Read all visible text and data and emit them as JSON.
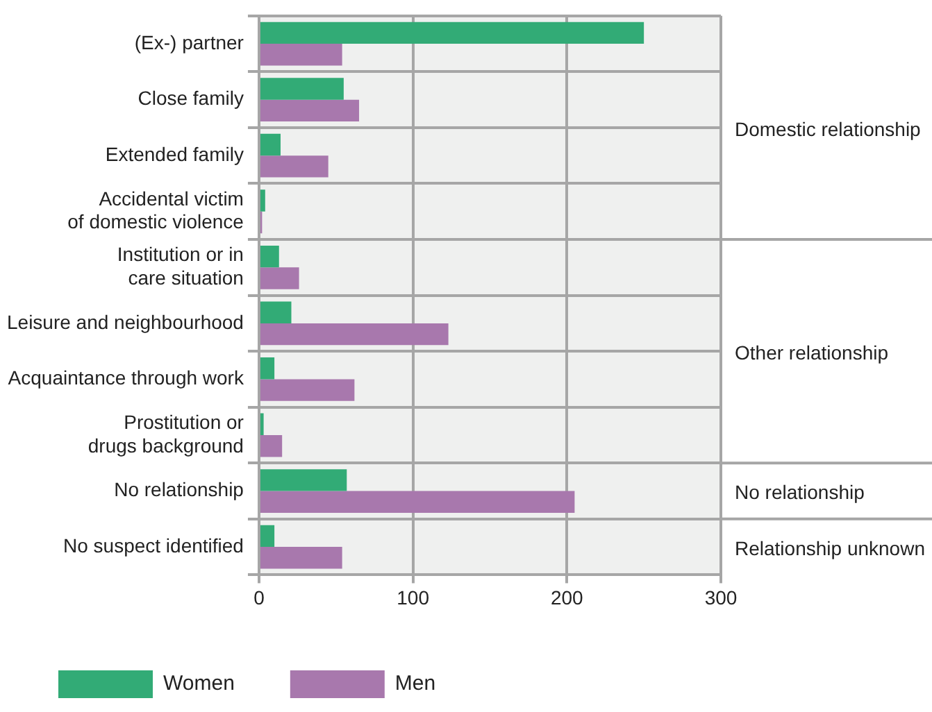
{
  "chart_data": {
    "type": "bar",
    "orientation": "horizontal",
    "categories": [
      "(Ex-) partner",
      "Close family",
      "Extended family",
      "Accidental victim\nof domestic violence",
      "Institution or in\ncare situation",
      "Leisure and neighbourhood",
      "Acquaintance through work",
      "Prostitution or\ndrugs background",
      "No relationship",
      "No suspect identified"
    ],
    "series": [
      {
        "name": "Women",
        "color": "#32ab76",
        "values": [
          250,
          55,
          14,
          4,
          13,
          21,
          10,
          3,
          57,
          10
        ]
      },
      {
        "name": "Men",
        "color": "#a878ad",
        "values": [
          54,
          65,
          45,
          2,
          26,
          123,
          62,
          15,
          205,
          54
        ]
      }
    ],
    "xlim": [
      0,
      300
    ],
    "xticks": [
      0,
      100,
      200,
      300
    ],
    "grid": true,
    "legend": "bottom",
    "annotations": [
      "Domestic relationship",
      "Other relationship",
      "No relationship",
      "Relationship unknown"
    ]
  }
}
